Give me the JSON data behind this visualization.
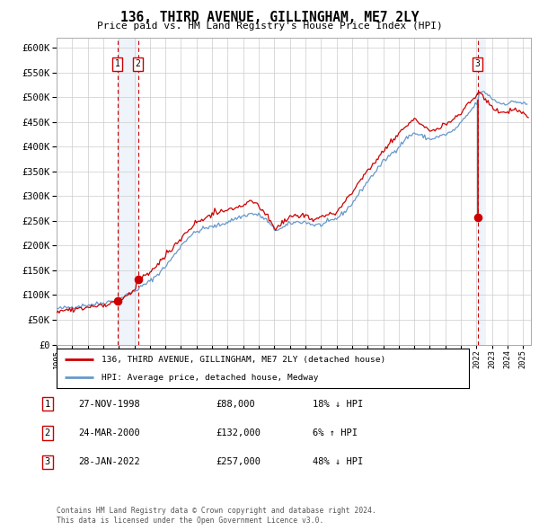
{
  "title": "136, THIRD AVENUE, GILLINGHAM, ME7 2LY",
  "subtitle": "Price paid vs. HM Land Registry's House Price Index (HPI)",
  "legend_line1": "136, THIRD AVENUE, GILLINGHAM, ME7 2LY (detached house)",
  "legend_line2": "HPI: Average price, detached house, Medway",
  "footer1": "Contains HM Land Registry data © Crown copyright and database right 2024.",
  "footer2": "This data is licensed under the Open Government Licence v3.0.",
  "sales": [
    {
      "label": "1",
      "date": "27-NOV-1998",
      "price": 88000,
      "hpi_pct": "18% ↓ HPI",
      "x": 1998.91
    },
    {
      "label": "2",
      "date": "24-MAR-2000",
      "price": 132000,
      "hpi_pct": "6% ↑ HPI",
      "x": 2000.23
    },
    {
      "label": "3",
      "date": "28-JAN-2022",
      "price": 257000,
      "hpi_pct": "48% ↓ HPI",
      "x": 2022.08
    }
  ],
  "hpi_color": "#6699cc",
  "price_color": "#cc0000",
  "sale_dot_color": "#cc0000",
  "vline_color": "#cc0000",
  "shade_color": "#ccddf0",
  "grid_color": "#cccccc",
  "background_color": "#ffffff",
  "ylim": [
    0,
    620000
  ],
  "xlim_start": 1995.0,
  "xlim_end": 2025.5,
  "yticks": [
    0,
    50000,
    100000,
    150000,
    200000,
    250000,
    300000,
    350000,
    400000,
    450000,
    500000,
    550000,
    600000
  ],
  "xticks": [
    1995,
    1996,
    1997,
    1998,
    1999,
    2000,
    2001,
    2002,
    2003,
    2004,
    2005,
    2006,
    2007,
    2008,
    2009,
    2010,
    2011,
    2012,
    2013,
    2014,
    2015,
    2016,
    2017,
    2018,
    2019,
    2020,
    2021,
    2022,
    2023,
    2024,
    2025
  ]
}
